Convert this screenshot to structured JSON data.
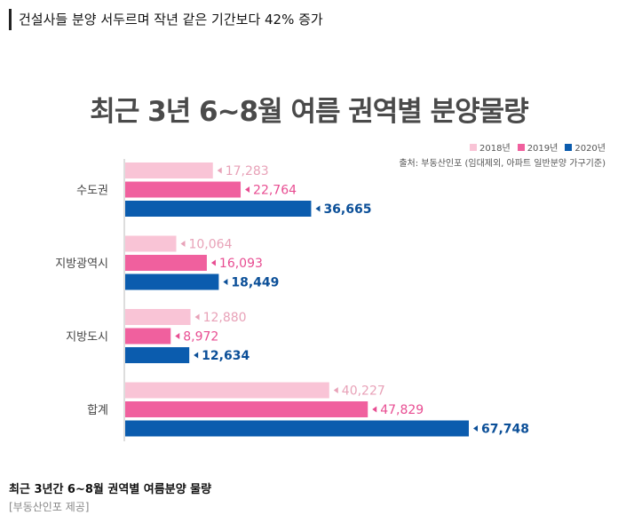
{
  "headline": "건설사들 분양 서두르며 작년 같은 기간보다 42% 증가",
  "caption": "최근 3년간 6~8월 권역별 여름분양 물량",
  "credit": "[부동산인포 제공]",
  "colors": {
    "2018년": "#f9c4d6",
    "2019년": "#f0609e",
    "2020년": "#0b5cae",
    "label_2018": "#e8a2b8",
    "label_2019": "#e84d92",
    "label_2020": "#0b4f98"
  },
  "chart_data": {
    "type": "bar",
    "orientation": "horizontal",
    "title": "최근 3년 6~8월 여름 권역별 분양물량",
    "source": "출처: 부동산인포 (임대제외, 아파트 일반분양 가구기준)",
    "categories": [
      "수도권",
      "지방광역시",
      "지방도시",
      "합계"
    ],
    "series": [
      {
        "name": "2018년",
        "values": [
          17283,
          10064,
          12880,
          40227
        ]
      },
      {
        "name": "2019년",
        "values": [
          22764,
          16093,
          8972,
          47829
        ]
      },
      {
        "name": "2020년",
        "values": [
          36665,
          18449,
          12634,
          67748
        ]
      }
    ],
    "value_labels": [
      [
        "17,283",
        "22,764",
        "36,665"
      ],
      [
        "10,064",
        "16,093",
        "18,449"
      ],
      [
        "12,880",
        "8,972",
        "12,634"
      ],
      [
        "40,227",
        "47,829",
        "67,748"
      ]
    ],
    "legend_position": "top-right",
    "grid": false,
    "xlim": [
      0,
      67748
    ]
  }
}
